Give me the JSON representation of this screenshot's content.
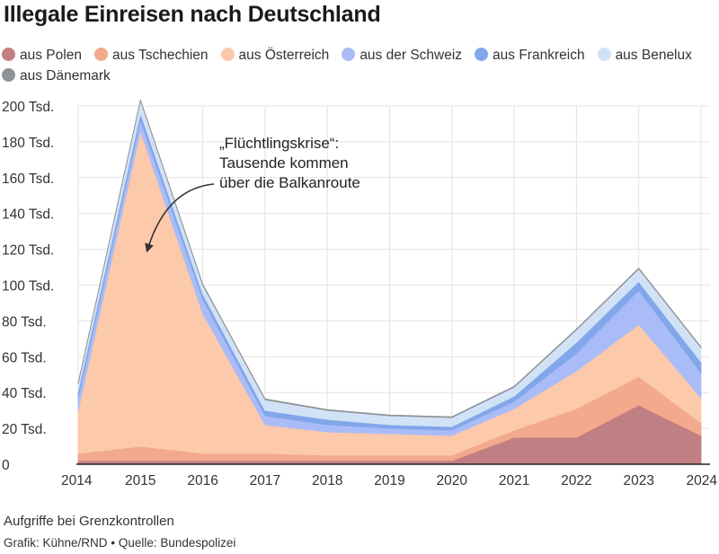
{
  "title": "Illegale Einreisen nach Deutschland",
  "subtitle": "Aufgriffe bei Grenzkontrollen",
  "credits": {
    "author": "Grafik: Kühne/RND",
    "separator": "•",
    "source": "Quelle: Bundespolizei"
  },
  "annotation": {
    "lines": [
      "„Flüchtlingskrise“:",
      "Tausende kommen",
      "über die Balkanroute"
    ],
    "target_x": 2015,
    "target_y": 122
  },
  "chart_data": {
    "type": "area",
    "stacked": true,
    "x": [
      2014,
      2015,
      2016,
      2017,
      2018,
      2019,
      2020,
      2021,
      2022,
      2023,
      2024
    ],
    "ylim": [
      0,
      200
    ],
    "yticks": [
      0,
      20,
      40,
      60,
      80,
      100,
      120,
      140,
      160,
      180,
      200
    ],
    "ytick_labels": [
      "0",
      "20 Tsd.",
      "40 Tsd.",
      "60 Tsd.",
      "80 Tsd.",
      "100 Tsd.",
      "120 Tsd.",
      "140 Tsd.",
      "160 Tsd.",
      "180 Tsd.",
      "200 Tsd."
    ],
    "grid": true,
    "legend_position": "top",
    "series": [
      {
        "name": "aus Polen",
        "color": "#c07f82",
        "values": [
          2,
          2,
          2,
          2,
          2,
          2,
          2,
          15,
          15,
          33,
          16
        ]
      },
      {
        "name": "aus Tschechien",
        "color": "#f2a98c",
        "values": [
          4,
          8,
          4,
          4,
          3,
          3,
          3,
          4,
          16,
          16,
          7
        ]
      },
      {
        "name": "aus Österreich",
        "color": "#fcc9aa",
        "values": [
          24,
          176,
          78,
          16,
          13,
          12,
          11,
          12,
          21,
          29,
          14
        ]
      },
      {
        "name": "aus der Schweiz",
        "color": "#aabcf7",
        "values": [
          7,
          6,
          8,
          5,
          4,
          3,
          3,
          4,
          10,
          19,
          14
        ]
      },
      {
        "name": "aus Frankreich",
        "color": "#82a6ea",
        "values": [
          4,
          4,
          3,
          3,
          3,
          2,
          2,
          3,
          6,
          5,
          6
        ]
      },
      {
        "name": "aus Benelux",
        "color": "#d2e2f6",
        "values": [
          4,
          7,
          5,
          6,
          5,
          5,
          5,
          5,
          7,
          7,
          8
        ]
      },
      {
        "name": "aus Dänemark",
        "color": "#8f9397",
        "values": [
          0.5,
          0.5,
          0.5,
          0.5,
          0.5,
          0.5,
          0.5,
          0.5,
          0.5,
          0.5,
          0.5
        ]
      }
    ]
  }
}
